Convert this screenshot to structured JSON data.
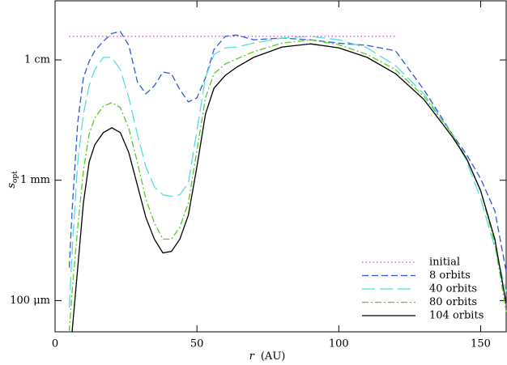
{
  "chart_data": {
    "type": "line",
    "ylog": true,
    "xlabel": {
      "symbol": "r",
      "unit": "(AU)"
    },
    "ylabel": {
      "symbol": "s",
      "sub": "opt"
    },
    "xlim": [
      0,
      159
    ],
    "xticks": [
      0,
      50,
      100,
      150
    ],
    "ylim": [
      0.055,
      31
    ],
    "yticks": [
      {
        "value": 10,
        "label": "1 cm"
      },
      {
        "value": 1,
        "label": "1 mm"
      },
      {
        "value": 0.1,
        "label": "100 μm"
      }
    ],
    "legend": "lower right",
    "series": [
      {
        "name": "initial",
        "color": "#cc44cc",
        "style": "dotted",
        "x": [
          5,
          120
        ],
        "values": [
          15.7,
          15.7
        ]
      },
      {
        "name": "8 orbits",
        "color": "#3355dd",
        "style": "dashed",
        "x": [
          5,
          6,
          8,
          10,
          12,
          14,
          17,
          20,
          23,
          26,
          29,
          32,
          35,
          38,
          41,
          44,
          47,
          50,
          53,
          56,
          60,
          64,
          70,
          80,
          90,
          100,
          110,
          120,
          130,
          140,
          145,
          150,
          155,
          159
        ],
        "values": [
          0.188,
          0.556,
          3.04,
          7.11,
          9.7,
          11.9,
          14.3,
          16.6,
          17.2,
          13.2,
          6.59,
          5.22,
          6.1,
          7.93,
          7.69,
          5.65,
          4.48,
          4.84,
          7.11,
          12.2,
          15.7,
          16.1,
          14.7,
          15.2,
          14.7,
          13.8,
          13.2,
          11.9,
          5.65,
          2.41,
          1.64,
          1.03,
          0.556,
          0.174
        ]
      },
      {
        "name": "40 orbits",
        "color": "#55dddd",
        "style": "longdash",
        "x": [
          5,
          6,
          8,
          10,
          12,
          14,
          17,
          20,
          23,
          26,
          29,
          32,
          35,
          38,
          41,
          44,
          47,
          50,
          53,
          56,
          60,
          64,
          70,
          80,
          90,
          100,
          110,
          120,
          130,
          140,
          145,
          150,
          155,
          159
        ],
        "values": [
          0.0871,
          0.256,
          1.41,
          3.55,
          6.1,
          8.3,
          10.5,
          10.5,
          8.3,
          4.84,
          2.41,
          1.3,
          0.883,
          0.757,
          0.734,
          0.757,
          0.955,
          2.61,
          7.11,
          11.1,
          12.6,
          12.8,
          13.8,
          15.2,
          15.7,
          14.7,
          12.6,
          8.97,
          5.22,
          2.41,
          1.45,
          0.701,
          0.277,
          0.119
        ]
      },
      {
        "name": "80 orbits",
        "color": "#55cc22",
        "style": "dashdot",
        "x": [
          5,
          6,
          8,
          10,
          12,
          14,
          17,
          20,
          23,
          26,
          29,
          32,
          35,
          38,
          41,
          44,
          47,
          50,
          53,
          56,
          60,
          64,
          70,
          80,
          90,
          100,
          110,
          120,
          130,
          140,
          145,
          150,
          155,
          159
        ],
        "values": [
          0.055,
          0.119,
          0.408,
          1.2,
          2.41,
          3.29,
          4.14,
          4.41,
          4.02,
          2.69,
          1.41,
          0.701,
          0.441,
          0.324,
          0.324,
          0.408,
          0.649,
          1.77,
          4.84,
          7.69,
          9.25,
          10.2,
          11.7,
          13.8,
          14.7,
          13.4,
          11.1,
          8.3,
          4.99,
          2.41,
          1.52,
          0.818,
          0.3,
          0.0805
        ]
      },
      {
        "name": "104 orbits",
        "color": "#000000",
        "style": "solid",
        "x": [
          5,
          6,
          8,
          10,
          12,
          14,
          17,
          20,
          23,
          26,
          29,
          32,
          35,
          38,
          41,
          44,
          47,
          50,
          53,
          56,
          60,
          64,
          70,
          80,
          90,
          100,
          110,
          120,
          130,
          140,
          145,
          150,
          155,
          159
        ],
        "values": [
          null,
          0.055,
          0.188,
          0.649,
          1.41,
          1.97,
          2.49,
          2.73,
          2.49,
          1.69,
          0.912,
          0.491,
          0.324,
          0.249,
          0.256,
          0.324,
          0.514,
          1.3,
          3.55,
          5.82,
          7.45,
          8.71,
          10.5,
          12.8,
          13.6,
          12.6,
          10.5,
          7.69,
          4.69,
          2.3,
          1.52,
          0.818,
          0.324,
          0.094
        ]
      }
    ]
  }
}
